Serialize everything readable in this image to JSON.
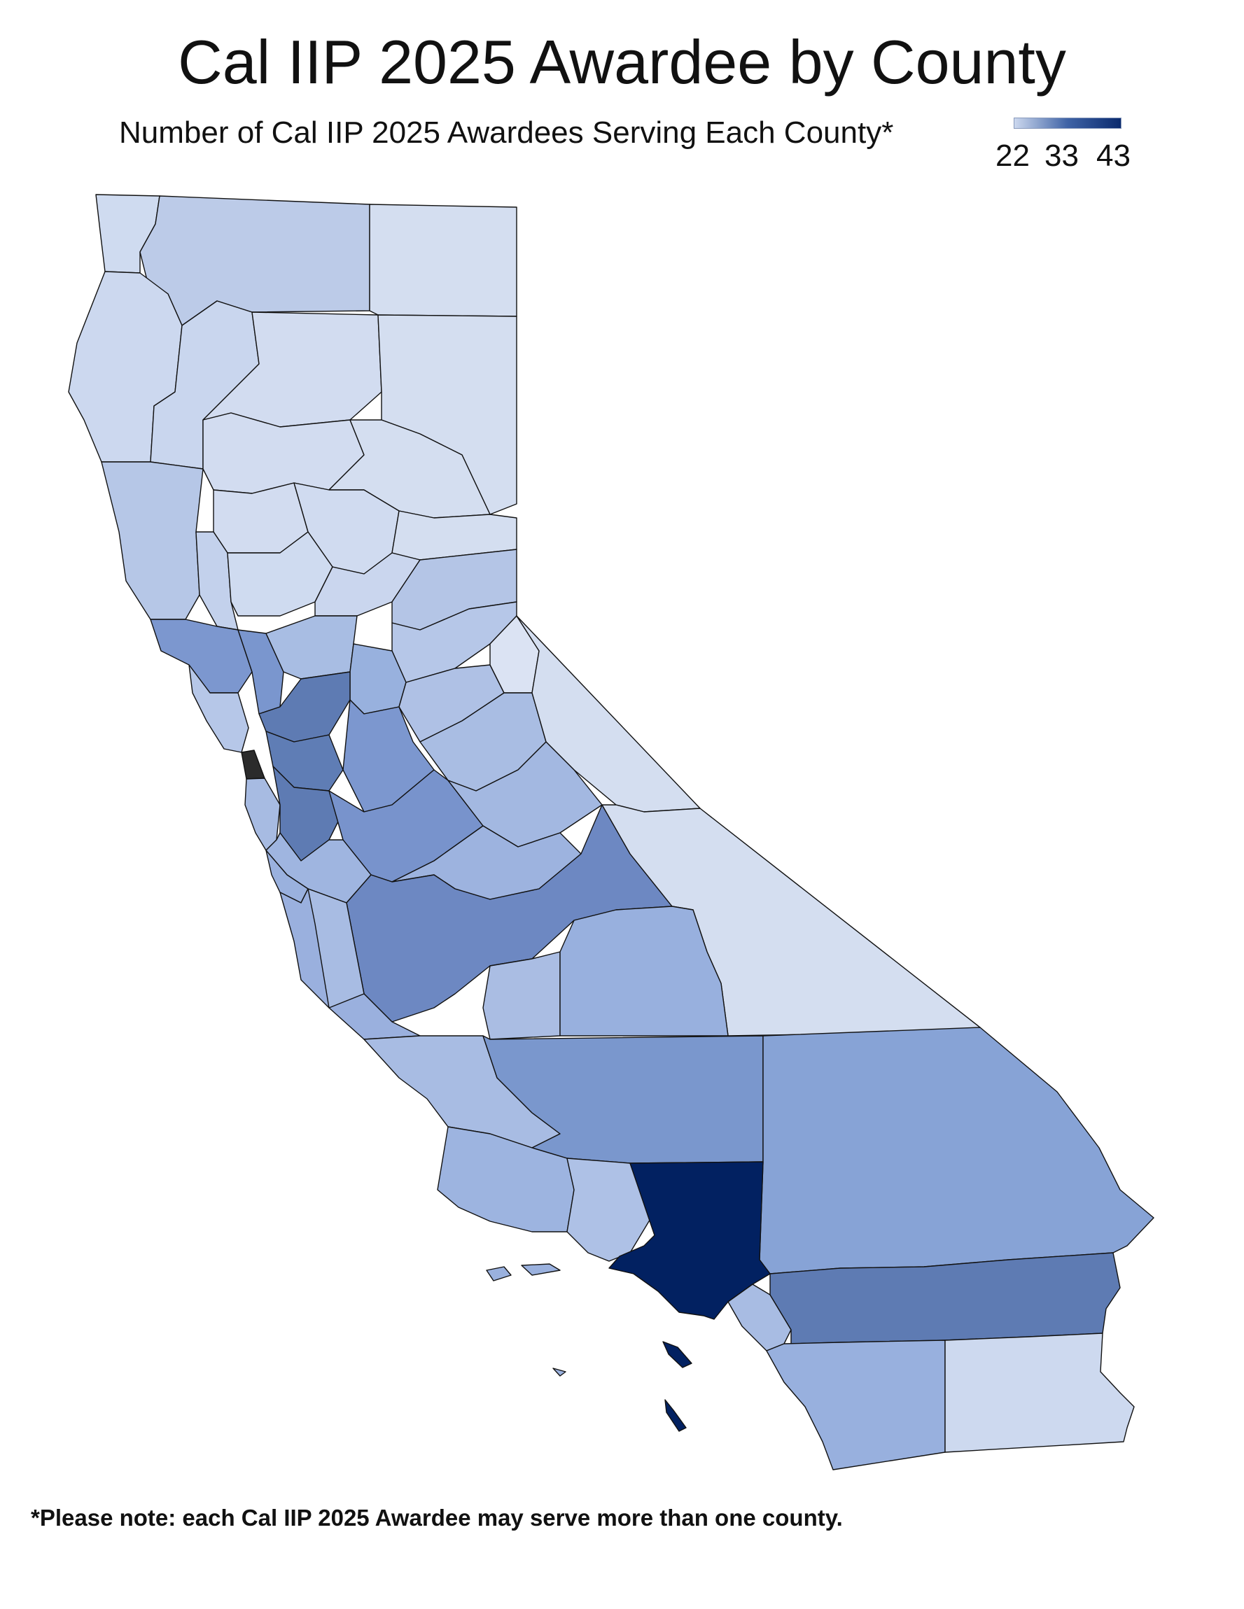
{
  "title": "Cal IIP 2025 Awardee by County",
  "subtitle": "Number of Cal IIP 2025 Awardees Serving Each County*",
  "legend": {
    "min": "22",
    "mid": "33",
    "max": "43",
    "colors": {
      "low": "#ccd8ee",
      "high": "#0a2a6e",
      "top_outlier": "#2b2b2b"
    }
  },
  "footnote": "*Please note: each Cal IIP 2025 Awardee may serve more than one county.",
  "map_data": {
    "type": "choropleth",
    "region": "California",
    "unit": "county",
    "value_range": [
      22,
      43
    ],
    "shading": [
      {
        "region": "Los Angeles",
        "level": "highest"
      },
      {
        "region": "San Francisco",
        "level": "highest"
      },
      {
        "region": "Channel Islands (Santa Catalina / San Clemente)",
        "level": "highest"
      },
      {
        "region": "Northern counties and Sierra Nevada",
        "level": "lowest"
      }
    ]
  }
}
